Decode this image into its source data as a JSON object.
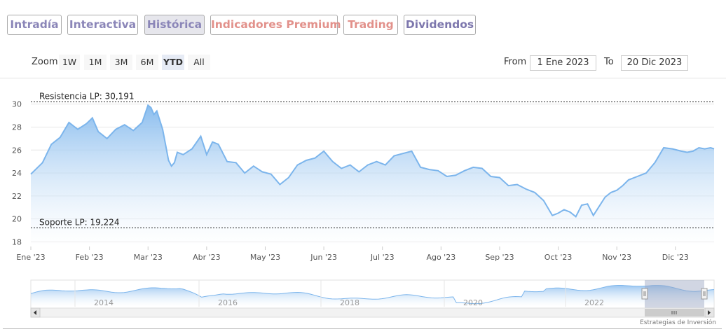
{
  "tabs": [
    {
      "label": "Intradía",
      "color": "#8b86b8",
      "active": false
    },
    {
      "label": "Interactiva",
      "color": "#8b86b8",
      "active": false
    },
    {
      "label": "Histórica",
      "color": "#8b86b8",
      "active": true
    },
    {
      "label": "Indicadores Premium",
      "color": "#e2918b",
      "active": false
    },
    {
      "label": "Trading",
      "color": "#e2918b",
      "active": false
    },
    {
      "label": "Dividendos",
      "color": "#7d77ad",
      "active": false
    }
  ],
  "zoom": {
    "label": "Zoom",
    "buttons": [
      "1W",
      "1M",
      "3M",
      "6M",
      "YTD",
      "All"
    ],
    "selected": "YTD"
  },
  "range": {
    "from_label": "From",
    "from_value": "1 Ene 2023",
    "to_label": "To",
    "to_value": "20 Dic 2023"
  },
  "credit": "Estrategias de Inversión",
  "colors": {
    "line": "#7cb5ec",
    "fill_top": "#7cb5ec",
    "fill_bottom": "#ffffff",
    "grid": "#e6e6e6",
    "nav_mask": "#99a4c0"
  },
  "chart_data": {
    "type": "area",
    "x_ticks": [
      "Ene '23",
      "Feb '23",
      "Mar '23",
      "Abr '23",
      "May '23",
      "Jun '23",
      "Jul '23",
      "Ago '23",
      "Sep '23",
      "Oct '23",
      "Nov '23",
      "Dic '23"
    ],
    "y_ticks": [
      18,
      20,
      22,
      24,
      26,
      28,
      30
    ],
    "ylim": [
      17.6,
      31.2
    ],
    "grid": true,
    "plot_lines": [
      {
        "label": "Resistencia LP: 30,191",
        "value": 30.191
      },
      {
        "label": "Soporte LP: 19,224",
        "value": 19.224
      }
    ],
    "x": [
      0,
      0.2,
      0.35,
      0.5,
      0.65,
      0.8,
      0.95,
      1.05,
      1.15,
      1.3,
      1.45,
      1.6,
      1.75,
      1.9,
      2.0,
      2.05,
      2.1,
      2.15,
      2.25,
      2.35,
      2.4,
      2.45,
      2.5,
      2.6,
      2.75,
      2.9,
      3.0,
      3.1,
      3.2,
      3.35,
      3.5,
      3.65,
      3.8,
      3.95,
      4.1,
      4.25,
      4.4,
      4.55,
      4.7,
      4.85,
      5.0,
      5.15,
      5.3,
      5.45,
      5.6,
      5.75,
      5.9,
      6.05,
      6.2,
      6.35,
      6.5,
      6.65,
      6.8,
      6.95,
      7.1,
      7.25,
      7.4,
      7.55,
      7.7,
      7.85,
      8.0,
      8.15,
      8.3,
      8.45,
      8.6,
      8.75,
      8.9,
      9.0,
      9.1,
      9.2,
      9.3,
      9.4,
      9.5,
      9.6,
      9.7,
      9.8,
      9.9,
      10.0,
      10.1,
      10.2,
      10.35,
      10.5,
      10.65,
      10.8,
      10.95,
      11.1,
      11.2,
      11.3,
      11.4,
      11.5,
      11.6,
      11.66
    ],
    "values": [
      23.9,
      24.9,
      26.5,
      27.1,
      28.4,
      27.8,
      28.3,
      28.8,
      27.6,
      27.0,
      27.8,
      28.2,
      27.7,
      28.4,
      29.9,
      29.7,
      29.1,
      29.4,
      27.8,
      25.1,
      24.6,
      24.9,
      25.8,
      25.6,
      26.1,
      27.2,
      25.6,
      26.7,
      26.5,
      25.0,
      24.9,
      24.0,
      24.6,
      24.1,
      23.9,
      23.0,
      23.6,
      24.7,
      25.1,
      25.3,
      25.9,
      25.0,
      24.4,
      24.7,
      24.1,
      24.7,
      25.0,
      24.7,
      25.5,
      25.7,
      25.9,
      24.5,
      24.3,
      24.2,
      23.7,
      23.8,
      24.2,
      24.5,
      24.4,
      23.7,
      23.6,
      22.9,
      23.0,
      22.6,
      22.3,
      21.6,
      20.3,
      20.5,
      20.8,
      20.6,
      20.2,
      21.2,
      21.3,
      20.3,
      21.1,
      21.9,
      22.3,
      22.5,
      22.9,
      23.4,
      23.7,
      24.0,
      24.9,
      26.2,
      26.1,
      25.9,
      25.8,
      25.9,
      26.2,
      26.1,
      26.2,
      26.1
    ],
    "navigator": {
      "x_ticks": [
        "2014",
        "2016",
        "2018",
        "2020",
        "2022"
      ]
    }
  }
}
